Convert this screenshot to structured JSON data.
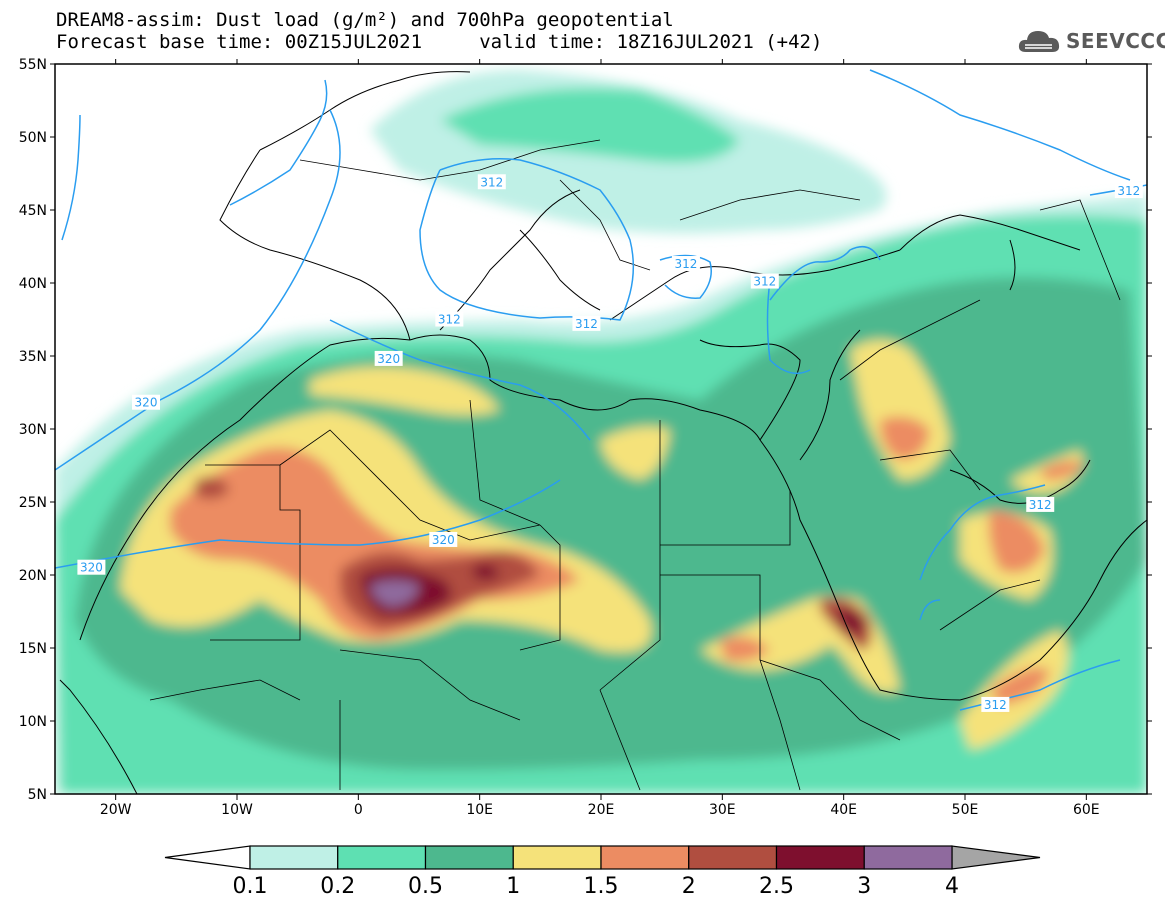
{
  "header": {
    "line1": "DREAM8-assim: Dust load (g/m²) and 700hPa geopotential",
    "line2": "Forecast base time: 00Z15JUL2021     valid time: 18Z16JUL2021 (+42)"
  },
  "logo": {
    "text": "SEEVCCC",
    "icon": "cloud-logo-icon"
  },
  "axes": {
    "lon_range": [
      -25,
      65
    ],
    "lat_range": [
      5,
      55
    ],
    "lon_ticks": [
      {
        "value": -20,
        "label": "20W"
      },
      {
        "value": -10,
        "label": "10W"
      },
      {
        "value": 0,
        "label": "0"
      },
      {
        "value": 10,
        "label": "10E"
      },
      {
        "value": 20,
        "label": "20E"
      },
      {
        "value": 30,
        "label": "30E"
      },
      {
        "value": 40,
        "label": "40E"
      },
      {
        "value": 50,
        "label": "50E"
      },
      {
        "value": 60,
        "label": "60E"
      }
    ],
    "lat_ticks": [
      {
        "value": 55,
        "label": "55N"
      },
      {
        "value": 50,
        "label": "50N"
      },
      {
        "value": 45,
        "label": "45N"
      },
      {
        "value": 40,
        "label": "40N"
      },
      {
        "value": 35,
        "label": "35N"
      },
      {
        "value": 30,
        "label": "30N"
      },
      {
        "value": 25,
        "label": "25N"
      },
      {
        "value": 20,
        "label": "20N"
      },
      {
        "value": 15,
        "label": "15N"
      },
      {
        "value": 10,
        "label": "10N"
      },
      {
        "value": 5,
        "label": "5N"
      }
    ]
  },
  "colorbar": {
    "colors": [
      "#bff0e6",
      "#5ee0b2",
      "#4db88e",
      "#f5e27a",
      "#ec8c62",
      "#b04e40",
      "#7e0f2e",
      "#8f6a9e"
    ],
    "labels": [
      "0.1",
      "0.2",
      "0.5",
      "1",
      "1.5",
      "2",
      "2.5",
      "3",
      "4"
    ],
    "under_color": "#ffffff",
    "over_color": "#a5a5a5"
  },
  "contour_color": "#2a9df0",
  "contour_labels": [
    {
      "text": "312",
      "lon": 11,
      "lat": 46.9
    },
    {
      "text": "312",
      "lon": 27,
      "lat": 41.3
    },
    {
      "text": "312",
      "lon": 33.5,
      "lat": 40.1
    },
    {
      "text": "312",
      "lon": 7.5,
      "lat": 37.5
    },
    {
      "text": "312",
      "lon": 18.8,
      "lat": 37.2
    },
    {
      "text": "312",
      "lon": 56.2,
      "lat": 24.8
    },
    {
      "text": "312",
      "lon": 63.5,
      "lat": 46.3
    },
    {
      "text": "312",
      "lon": 52.5,
      "lat": 11.1
    },
    {
      "text": "320",
      "lon": 2.5,
      "lat": 34.8
    },
    {
      "text": "320",
      "lon": -17.5,
      "lat": 31.8
    },
    {
      "text": "320",
      "lon": 7,
      "lat": 22.4
    },
    {
      "text": "320",
      "lon": -22,
      "lat": 20.5
    }
  ]
}
